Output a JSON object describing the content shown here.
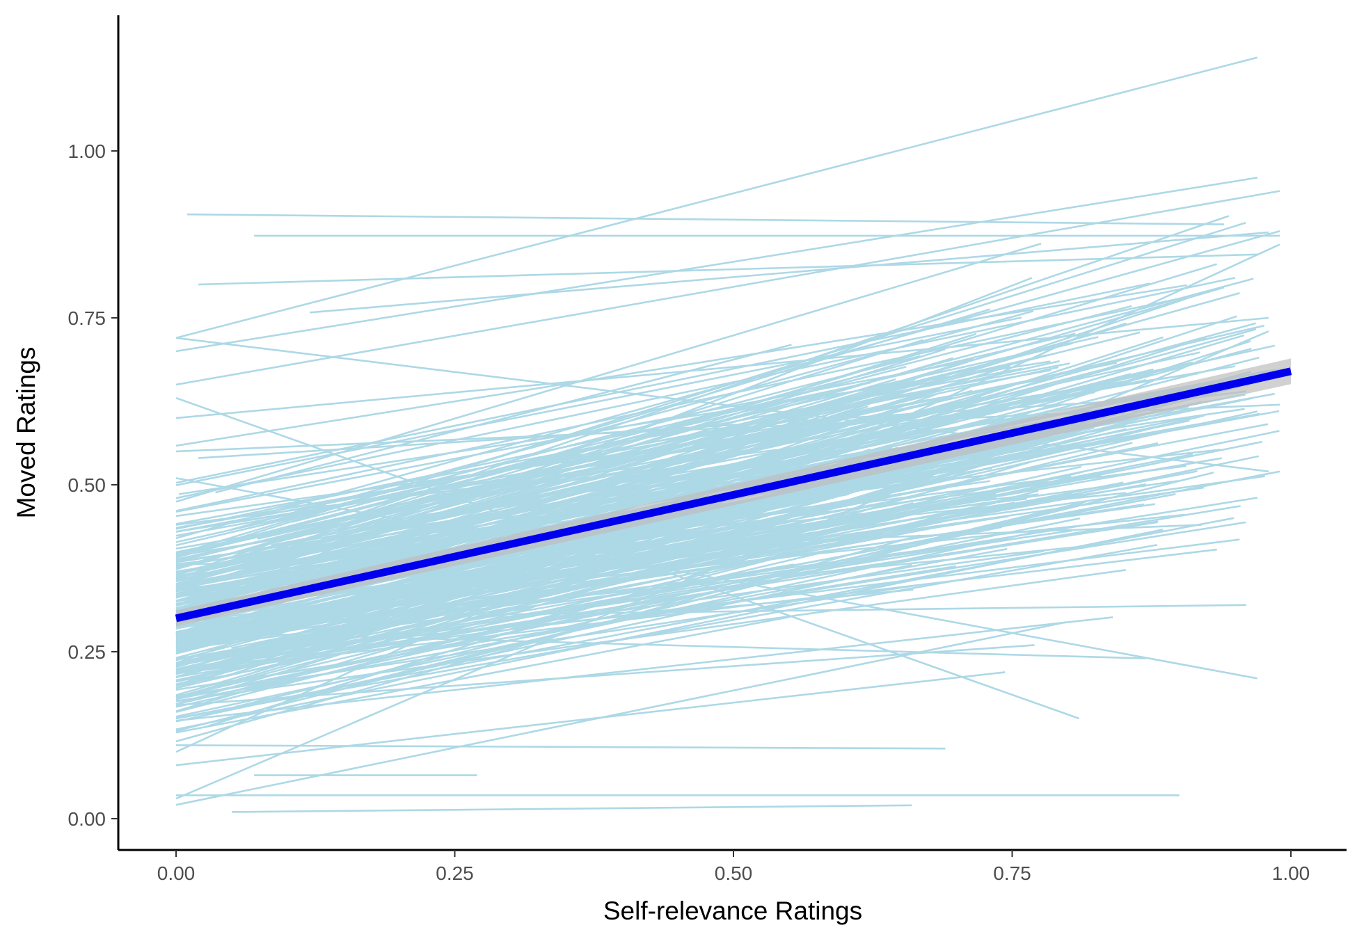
{
  "chart_data": {
    "type": "line",
    "title": "",
    "xlabel": "Self-relevance Ratings",
    "ylabel": "Moved Ratings",
    "xlim": [
      -0.05,
      1.05
    ],
    "ylim": [
      -0.045,
      1.2
    ],
    "x_ticks": [
      0,
      0.25,
      0.5,
      0.75,
      1
    ],
    "x_tick_labels": [
      "0.00",
      "0.25",
      "0.50",
      "0.75",
      "1.00"
    ],
    "y_ticks": [
      0,
      0.25,
      0.5,
      0.75,
      1
    ],
    "y_tick_labels": [
      "0.00",
      "0.25",
      "0.50",
      "0.75",
      "1.00"
    ],
    "grid": false,
    "legend": "none",
    "colors": {
      "participant_lines": "#add8e6",
      "fit_line": "#0000ee",
      "confidence_band": "#bebebe",
      "axis": "#000000"
    },
    "fixed_effect_line": {
      "intercept": 0.3,
      "slope": 0.37,
      "x_range": [
        0,
        1
      ],
      "ci_halfwidth": 0.012
    },
    "participant_lines_summary": {
      "count": 320,
      "intercept_range": [
        0.015,
        0.9
      ],
      "x_range": [
        0,
        1
      ]
    },
    "participant_lines": [
      {
        "x": [
          0.01,
          0.94
        ],
        "y": [
          0.905,
          0.89
        ]
      },
      {
        "x": [
          0.07,
          0.99
        ],
        "y": [
          0.873,
          0.873
        ]
      },
      {
        "x": [
          0.02,
          0.97
        ],
        "y": [
          0.8,
          0.845
        ]
      },
      {
        "x": [
          0.12,
          0.98
        ],
        "y": [
          0.758,
          0.878
        ]
      },
      {
        "x": [
          0.0,
          0.97
        ],
        "y": [
          0.72,
          1.14
        ]
      },
      {
        "x": [
          0.0,
          0.97
        ],
        "y": [
          0.7,
          0.96
        ]
      },
      {
        "x": [
          0.0,
          0.99
        ],
        "y": [
          0.65,
          0.94
        ]
      },
      {
        "x": [
          0.0,
          0.98
        ],
        "y": [
          0.72,
          0.52
        ]
      },
      {
        "x": [
          0.0,
          0.81
        ],
        "y": [
          0.63,
          0.15
        ]
      },
      {
        "x": [
          0.0,
          0.97
        ],
        "y": [
          0.51,
          0.21
        ]
      },
      {
        "x": [
          0.0,
          0.99
        ],
        "y": [
          0.1,
          0.86
        ]
      },
      {
        "x": [
          0.0,
          0.98
        ],
        "y": [
          0.03,
          0.73
        ]
      },
      {
        "x": [
          0.0,
          0.9
        ],
        "y": [
          0.035,
          0.035
        ]
      },
      {
        "x": [
          0.05,
          0.66
        ],
        "y": [
          0.01,
          0.02
        ]
      },
      {
        "x": [
          0.07,
          0.27
        ],
        "y": [
          0.065,
          0.065
        ]
      },
      {
        "x": [
          0.0,
          0.69
        ],
        "y": [
          0.11,
          0.105
        ]
      },
      {
        "x": [
          0.0,
          0.98
        ],
        "y": [
          0.6,
          0.75
        ]
      },
      {
        "x": [
          0.0,
          0.96
        ],
        "y": [
          0.44,
          0.64
        ]
      },
      {
        "x": [
          0.0,
          0.99
        ],
        "y": [
          0.35,
          0.67
        ]
      },
      {
        "x": [
          0.0,
          0.97
        ],
        "y": [
          0.25,
          0.61
        ]
      },
      {
        "x": [
          0.0,
          0.99
        ],
        "y": [
          0.2,
          0.52
        ]
      },
      {
        "x": [
          0.0,
          0.88
        ],
        "y": [
          0.15,
          0.41
        ]
      },
      {
        "x": [
          0.0,
          0.95
        ],
        "y": [
          0.48,
          0.81
        ]
      },
      {
        "x": [
          0.0,
          0.99
        ],
        "y": [
          0.55,
          0.62
        ]
      },
      {
        "x": [
          0.0,
          0.96
        ],
        "y": [
          0.3,
          0.32
        ]
      },
      {
        "x": [
          0.0,
          0.87
        ],
        "y": [
          0.28,
          0.24
        ]
      },
      {
        "x": [
          0.0,
          0.92
        ],
        "y": [
          0.38,
          0.44
        ]
      },
      {
        "x": [
          0.0,
          0.99
        ],
        "y": [
          0.42,
          0.88
        ]
      },
      {
        "x": [
          0.02,
          0.89
        ],
        "y": [
          0.54,
          0.63
        ]
      },
      {
        "x": [
          0.0,
          0.77
        ],
        "y": [
          0.17,
          0.26
        ]
      }
    ]
  }
}
